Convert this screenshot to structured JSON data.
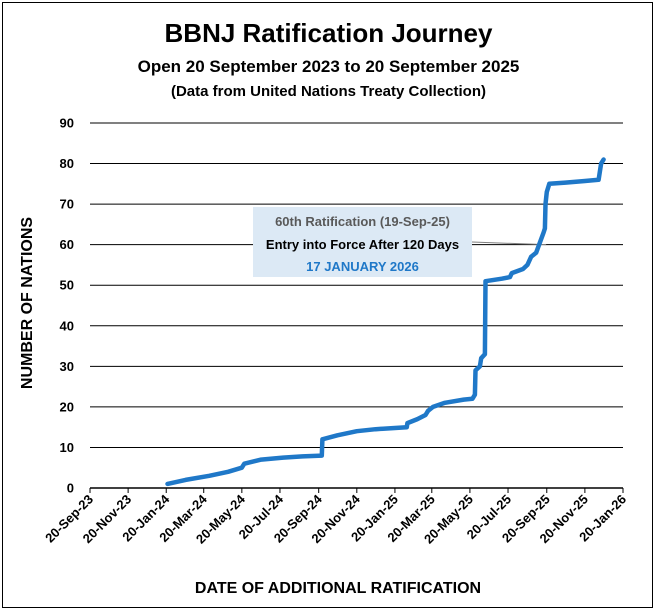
{
  "chart_data": {
    "type": "line",
    "title": "BBNJ Ratification Journey",
    "subtitle": "Open 20 September 2023 to 20 September 2025",
    "subtitle2": "(Data from United Nations Treaty Collection)",
    "xlabel": "DATE OF ADDITIONAL RATIFICATION",
    "ylabel": "NUMBER OF NATIONS",
    "ylim": [
      0,
      90
    ],
    "yticks": [
      0,
      10,
      20,
      30,
      40,
      50,
      60,
      70,
      80,
      90
    ],
    "xlim": [
      "2023-09-20",
      "2026-01-20"
    ],
    "xtick_labels": [
      "20-Sep-23",
      "20-Nov-23",
      "20-Jan-24",
      "20-Mar-24",
      "20-May-24",
      "20-Jul-24",
      "20-Sep-24",
      "20-Nov-24",
      "20-Jan-25",
      "20-Mar-25",
      "20-May-25",
      "20-Jul-25",
      "20-Sep-25",
      "20-Nov-25",
      "20-Jan-26"
    ],
    "xtick_dates": [
      "2023-09-20",
      "2023-11-20",
      "2024-01-20",
      "2024-03-20",
      "2024-05-20",
      "2024-07-20",
      "2024-09-20",
      "2024-11-20",
      "2025-01-20",
      "2025-03-20",
      "2025-05-20",
      "2025-07-20",
      "2025-09-20",
      "2025-11-20",
      "2026-01-20"
    ],
    "grid": "horizontal",
    "color": "#1f78c8",
    "series": [
      {
        "points": [
          [
            "2024-01-22",
            1
          ],
          [
            "2024-02-20",
            2
          ],
          [
            "2024-03-29",
            3
          ],
          [
            "2024-04-28",
            4
          ],
          [
            "2024-05-20",
            5
          ],
          [
            "2024-05-24",
            6
          ],
          [
            "2024-06-20",
            7
          ],
          [
            "2024-07-25",
            7.5
          ],
          [
            "2024-08-25",
            7.8
          ],
          [
            "2024-09-25",
            8
          ],
          [
            "2024-09-26",
            12
          ],
          [
            "2024-10-20",
            13
          ],
          [
            "2024-11-20",
            14
          ],
          [
            "2024-12-20",
            14.5
          ],
          [
            "2025-01-20",
            14.8
          ],
          [
            "2025-02-08",
            15
          ],
          [
            "2025-02-09",
            16
          ],
          [
            "2025-02-25",
            17
          ],
          [
            "2025-03-10",
            18
          ],
          [
            "2025-03-14",
            19
          ],
          [
            "2025-03-22",
            20
          ],
          [
            "2025-04-10",
            21
          ],
          [
            "2025-05-10",
            21.8
          ],
          [
            "2025-05-24",
            22
          ],
          [
            "2025-05-28",
            23
          ],
          [
            "2025-05-29",
            29
          ],
          [
            "2025-06-05",
            30
          ],
          [
            "2025-06-07",
            32
          ],
          [
            "2025-06-13",
            33
          ],
          [
            "2025-06-14",
            51
          ],
          [
            "2025-07-10",
            51.6
          ],
          [
            "2025-07-23",
            52
          ],
          [
            "2025-07-26",
            53
          ],
          [
            "2025-08-13",
            54
          ],
          [
            "2025-08-20",
            55
          ],
          [
            "2025-08-26",
            57
          ],
          [
            "2025-09-03",
            58
          ],
          [
            "2025-09-15",
            63
          ],
          [
            "2025-09-17",
            64
          ],
          [
            "2025-09-18",
            70
          ],
          [
            "2025-09-20",
            73
          ],
          [
            "2025-09-24",
            75
          ],
          [
            "2025-10-20",
            75.3
          ],
          [
            "2025-11-20",
            75.7
          ],
          [
            "2025-12-12",
            76
          ],
          [
            "2025-12-16",
            80
          ],
          [
            "2025-12-20",
            81
          ]
        ]
      }
    ],
    "annotation": {
      "line1": "60th Ratification (19-Sep-25)",
      "line2": "Entry into Force After 120 Days",
      "line3": "17 JANUARY 2026",
      "target": [
        "2025-09-19",
        60
      ]
    }
  }
}
